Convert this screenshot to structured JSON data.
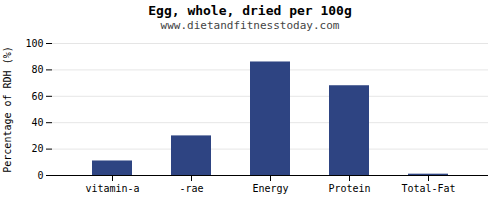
{
  "chart_data": {
    "type": "bar",
    "title": "Egg, whole, dried per 100g",
    "subtitle": "www.dietandfitnesstoday.com",
    "categories": [
      "vitamin-a",
      "-rae",
      "Energy",
      "Protein",
      "Total-Fat"
    ],
    "values": [
      11,
      30,
      86,
      68,
      1
    ],
    "color": "#2e4482",
    "ylabel": "Percentage of RDH (%)",
    "ylim": [
      0,
      100
    ],
    "yticks": [
      0,
      20,
      40,
      60,
      80,
      100
    ],
    "grid": true
  }
}
